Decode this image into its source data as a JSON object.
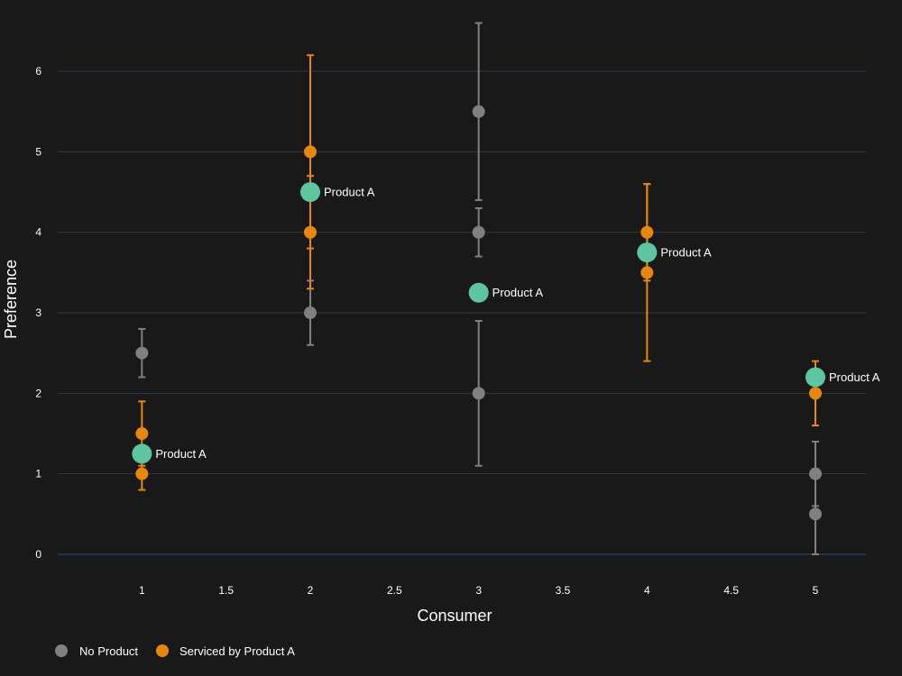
{
  "chart_data": {
    "type": "scatter",
    "title": "",
    "xlabel": "Consumer",
    "ylabel": "Preference",
    "xlim": [
      0.5,
      5.3
    ],
    "ylim": [
      0,
      6.55
    ],
    "x_ticks": [
      1,
      1.5,
      2,
      2.5,
      3,
      3.5,
      4,
      4.5,
      5
    ],
    "x_tick_labels": [
      "1",
      "1.5",
      "2",
      "2.5",
      "3",
      "3.5",
      "4",
      "4.5",
      "5"
    ],
    "y_ticks": [
      0,
      1,
      2,
      3,
      4,
      5,
      6
    ],
    "y_tick_labels": [
      "0",
      "1",
      "2",
      "3",
      "4",
      "5",
      "6"
    ],
    "grid": true,
    "legend_position": "bottom-left",
    "colors": {
      "background": "#191919",
      "grid": "#2b3a4a",
      "text": "#ffffff",
      "no_product": "#808080",
      "serviced": "#e8870f",
      "product_a": "#5dc6a0"
    },
    "series": [
      {
        "name": "No Product",
        "color_key": "no_product",
        "points": [
          {
            "x": 1,
            "y": 2.5,
            "err": 0.3
          },
          {
            "x": 2,
            "y": 3.0,
            "err": 0.4
          },
          {
            "x": 3,
            "y": 5.5,
            "err": 1.1
          },
          {
            "x": 3,
            "y": 4.0,
            "err": 0.3
          },
          {
            "x": 3,
            "y": 2.0,
            "err": 0.9
          },
          {
            "x": 5,
            "y": 1.0,
            "err": 0.4
          },
          {
            "x": 5,
            "y": 0.5,
            "err": 0.5
          }
        ]
      },
      {
        "name": "Serviced by Product A",
        "color_key": "serviced",
        "points": [
          {
            "x": 1,
            "y": 1.5,
            "err": 0.4
          },
          {
            "x": 1,
            "y": 1.0,
            "err": 0.2
          },
          {
            "x": 2,
            "y": 5.0,
            "err": 1.2
          },
          {
            "x": 2,
            "y": 4.0,
            "err": 0.7
          },
          {
            "x": 4,
            "y": 4.0,
            "err": 0.6
          },
          {
            "x": 4,
            "y": 3.5,
            "err": 1.1
          },
          {
            "x": 5,
            "y": 2.0,
            "err": 0.4
          }
        ]
      }
    ],
    "product_markers": [
      {
        "x": 1,
        "y": 1.25,
        "label": "Product A"
      },
      {
        "x": 2,
        "y": 4.5,
        "label": "Product A"
      },
      {
        "x": 3,
        "y": 3.25,
        "label": "Product A"
      },
      {
        "x": 4,
        "y": 3.75,
        "label": "Product A"
      },
      {
        "x": 5,
        "y": 2.2,
        "label": "Product A"
      }
    ]
  }
}
